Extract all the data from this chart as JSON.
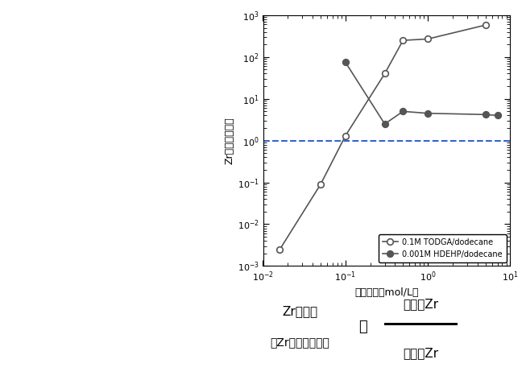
{
  "todga_x": [
    0.016,
    0.05,
    0.1,
    0.3,
    0.5,
    1.0,
    5.0
  ],
  "todga_y": [
    0.0025,
    0.09,
    1.3,
    40,
    250,
    270,
    580
  ],
  "hdehp_x": [
    0.1,
    0.3,
    0.5,
    1.0,
    5.0,
    7.0
  ],
  "hdehp_y": [
    75,
    2.5,
    5.0,
    4.5,
    4.2,
    4.0
  ],
  "todga_label": "0.1M TODGA/dodecane",
  "hdehp_label": "0.001M HDEHP/dodecane",
  "xlabel": "硝酸濃度（mol/L）",
  "ylabel": "Zr分配比（－）",
  "xlim": [
    0.01,
    10
  ],
  "ylim": [
    0.001,
    1000
  ],
  "dashed_y": 1.0,
  "line_color": "#555555",
  "dashed_color": "#3366cc",
  "bg_color": "#ffffff",
  "fig_width": 6.53,
  "fig_height": 4.72,
  "formula_line1": "Zr分配比",
  "formula_line2": "（Zrの分離性能）",
  "formula_numerator": "油中のZr",
  "formula_denominator": "水中のZr"
}
